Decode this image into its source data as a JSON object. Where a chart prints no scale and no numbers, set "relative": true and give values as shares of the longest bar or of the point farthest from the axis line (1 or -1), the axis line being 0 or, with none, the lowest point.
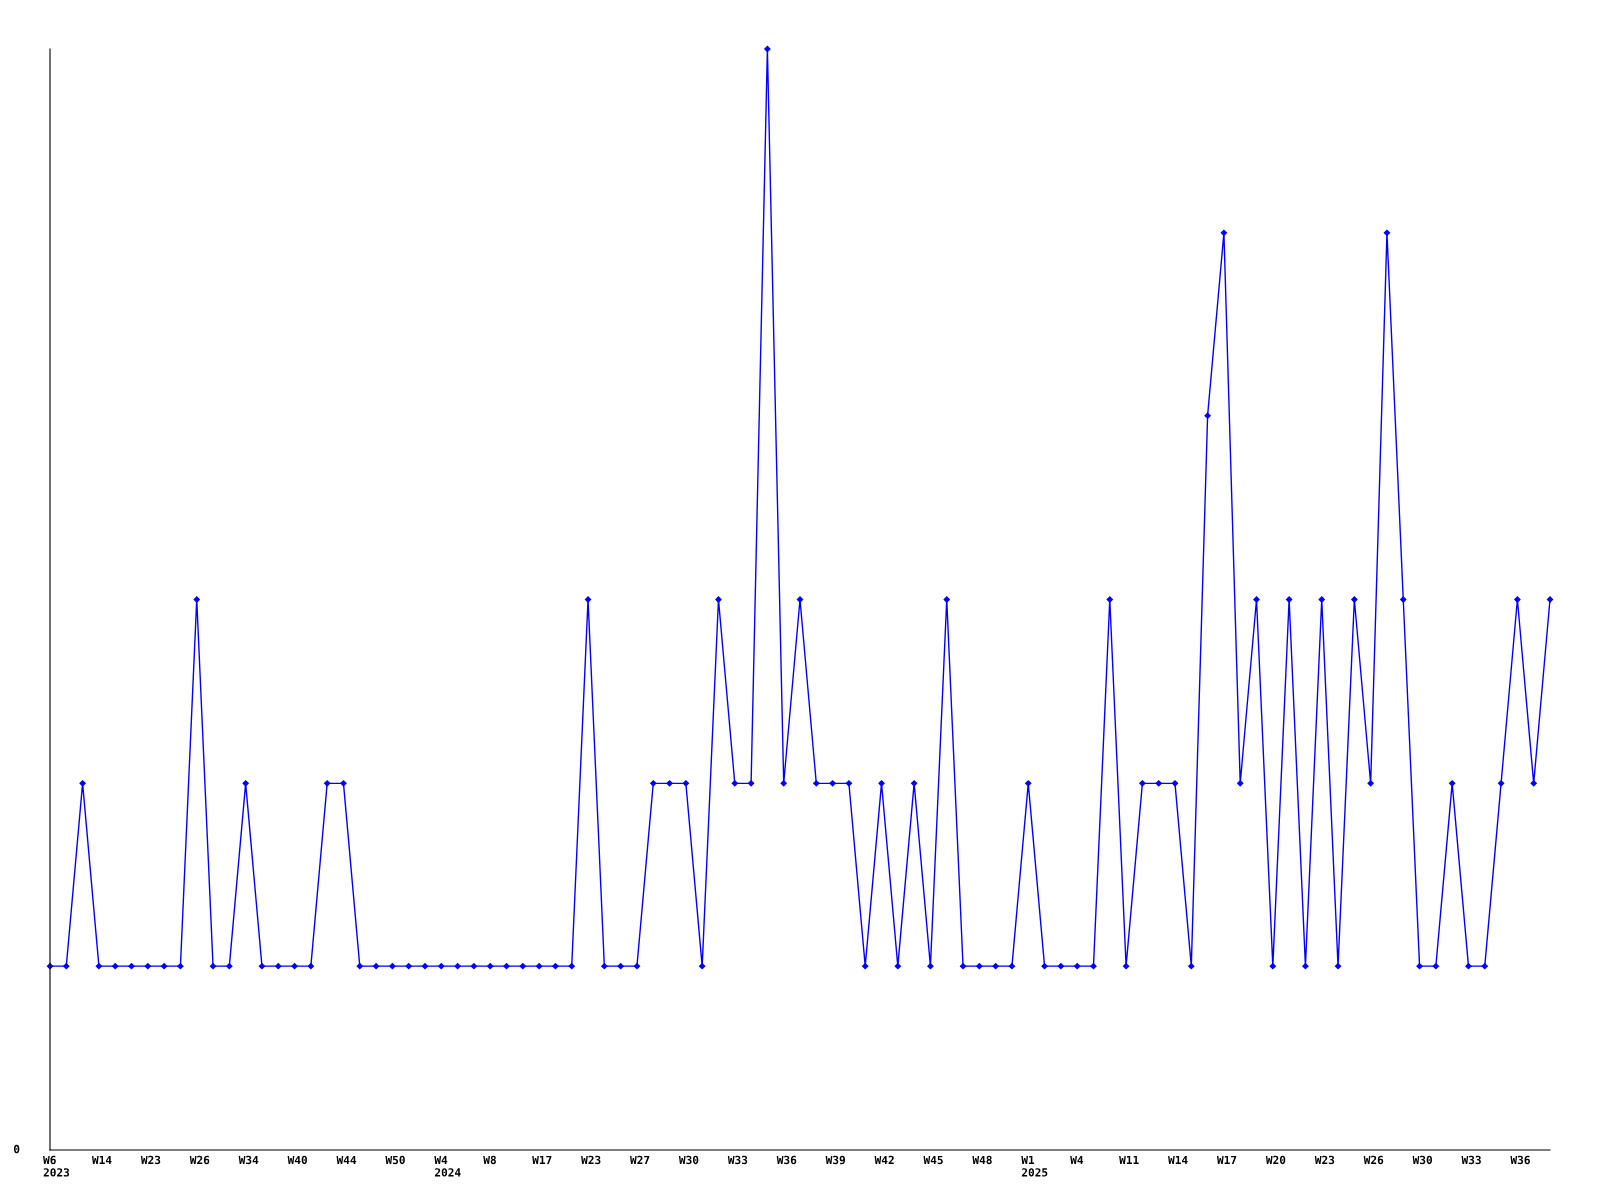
{
  "chart_data": {
    "type": "line",
    "relative": true,
    "color": "#0000ff",
    "marker": "diamond",
    "grid": false,
    "legend": false,
    "annotations": [
      "0"
    ],
    "categories": [
      "W6\n2023",
      null,
      null,
      "W14",
      null,
      null,
      "W23",
      null,
      null,
      "W26",
      null,
      null,
      "W34",
      null,
      null,
      "W40",
      null,
      null,
      "W44",
      null,
      null,
      "W50",
      null,
      null,
      "W4\n2024",
      null,
      null,
      "W8",
      null,
      null,
      "W17",
      null,
      null,
      "W23",
      null,
      null,
      "W27",
      null,
      null,
      "W30",
      null,
      null,
      "W33",
      null,
      null,
      "W36",
      null,
      null,
      "W39",
      null,
      null,
      "W42",
      null,
      null,
      "W45",
      null,
      null,
      "W48",
      null,
      null,
      "W1\n2025",
      null,
      null,
      "W4",
      null,
      null,
      "W11",
      null,
      null,
      "W14",
      null,
      null,
      "W17",
      null,
      null,
      "W20",
      null,
      null,
      "W23",
      null,
      null,
      "W26",
      null,
      null,
      "W30",
      null,
      null,
      "W33",
      null,
      null,
      "W36",
      null,
      null
    ],
    "values": [
      0.167,
      0.167,
      0.333,
      0.167,
      0.167,
      0.167,
      0.167,
      0.167,
      0.167,
      0.5,
      0.167,
      0.167,
      0.333,
      0.167,
      0.167,
      0.167,
      0.167,
      0.333,
      0.333,
      0.167,
      0.167,
      0.167,
      0.167,
      0.167,
      0.167,
      0.167,
      0.167,
      0.167,
      0.167,
      0.167,
      0.167,
      0.167,
      0.167,
      0.5,
      0.167,
      0.167,
      0.167,
      0.333,
      0.333,
      0.333,
      0.167,
      0.5,
      0.333,
      0.333,
      1,
      0.333,
      0.5,
      0.333,
      0.333,
      0.333,
      0.167,
      0.333,
      0.167,
      0.333,
      0.167,
      0.5,
      0.167,
      0.167,
      0.167,
      0.167,
      0.333,
      0.167,
      0.167,
      0.167,
      0.167,
      0.5,
      0.167,
      0.333,
      0.333,
      0.333,
      0.167,
      0.667,
      0.833,
      0.333,
      0.5,
      0.167,
      0.5,
      0.167,
      0.5,
      0.167,
      0.5,
      0.333,
      0.833,
      0.5,
      0.167,
      0.167,
      0.333,
      0.167,
      0.167,
      0.333,
      0.5,
      0.333,
      0.5
    ]
  }
}
